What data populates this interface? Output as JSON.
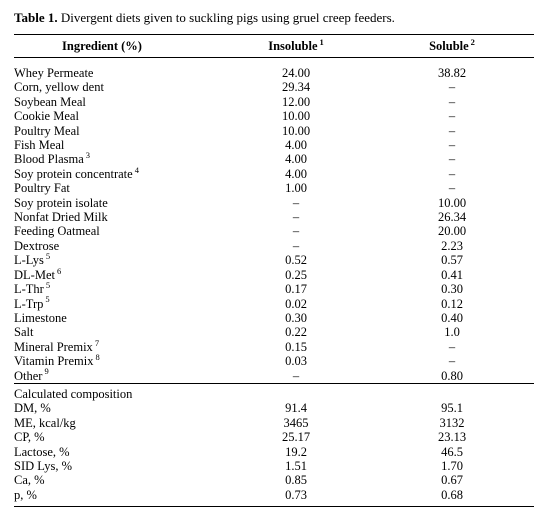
{
  "caption": {
    "label": "Table 1.",
    "text": "Divergent diets given to suckling pigs using gruel creep feeders."
  },
  "headers": {
    "col1": "Ingredient (%)",
    "col2": "Insoluble",
    "col2_sup": "1",
    "col3": "Soluble",
    "col3_sup": "2"
  },
  "ingredients": [
    {
      "name": "Whey Permeate",
      "sup": "",
      "insoluble": "24.00",
      "soluble": "38.82"
    },
    {
      "name": "Corn, yellow dent",
      "sup": "",
      "insoluble": "29.34",
      "soluble": "–"
    },
    {
      "name": "Soybean Meal",
      "sup": "",
      "insoluble": "12.00",
      "soluble": "–"
    },
    {
      "name": "Cookie Meal",
      "sup": "",
      "insoluble": "10.00",
      "soluble": "–"
    },
    {
      "name": "Poultry Meal",
      "sup": "",
      "insoluble": "10.00",
      "soluble": "–"
    },
    {
      "name": "Fish Meal",
      "sup": "",
      "insoluble": "4.00",
      "soluble": "–"
    },
    {
      "name": "Blood Plasma",
      "sup": "3",
      "insoluble": "4.00",
      "soluble": "–"
    },
    {
      "name": "Soy protein concentrate",
      "sup": "4",
      "insoluble": "4.00",
      "soluble": "–"
    },
    {
      "name": "Poultry Fat",
      "sup": "",
      "insoluble": "1.00",
      "soluble": "–"
    },
    {
      "name": "Soy protein isolate",
      "sup": "",
      "insoluble": "–",
      "soluble": "10.00"
    },
    {
      "name": "Nonfat Dried Milk",
      "sup": "",
      "insoluble": "–",
      "soluble": "26.34"
    },
    {
      "name": "Feeding Oatmeal",
      "sup": "",
      "insoluble": "–",
      "soluble": "20.00"
    },
    {
      "name": "Dextrose",
      "sup": "",
      "insoluble": "–",
      "soluble": "2.23"
    },
    {
      "name": "L-Lys",
      "sup": "5",
      "insoluble": "0.52",
      "soluble": "0.57"
    },
    {
      "name": "DL-Met",
      "sup": "6",
      "insoluble": "0.25",
      "soluble": "0.41"
    },
    {
      "name": "L-Thr",
      "sup": "5",
      "insoluble": "0.17",
      "soluble": "0.30"
    },
    {
      "name": "L-Trp",
      "sup": "5",
      "insoluble": "0.02",
      "soluble": "0.12"
    },
    {
      "name": "Limestone",
      "sup": "",
      "insoluble": "0.30",
      "soluble": "0.40"
    },
    {
      "name": "Salt",
      "sup": "",
      "insoluble": "0.22",
      "soluble": "1.0"
    },
    {
      "name": "Mineral Premix",
      "sup": "7",
      "insoluble": "0.15",
      "soluble": "–"
    },
    {
      "name": "Vitamin Premix",
      "sup": "8",
      "insoluble": "0.03",
      "soluble": "–"
    },
    {
      "name": "Other",
      "sup": "9",
      "insoluble": "–",
      "soluble": "0.80"
    }
  ],
  "composition": {
    "heading": "Calculated composition",
    "rows": [
      {
        "name": "DM, %",
        "insoluble": "91.4",
        "soluble": "95.1"
      },
      {
        "name": "ME, kcal/kg",
        "insoluble": "3465",
        "soluble": "3132"
      },
      {
        "name": "CP, %",
        "insoluble": "25.17",
        "soluble": "23.13"
      },
      {
        "name": "Lactose, %",
        "insoluble": "19.2",
        "soluble": "46.5"
      },
      {
        "name": "SID Lys, %",
        "insoluble": "1.51",
        "soluble": "1.70"
      },
      {
        "name": "Ca, %",
        "insoluble": "0.85",
        "soluble": "0.67"
      },
      {
        "name": "p, %",
        "insoluble": "0.73",
        "soluble": "0.68"
      }
    ]
  }
}
